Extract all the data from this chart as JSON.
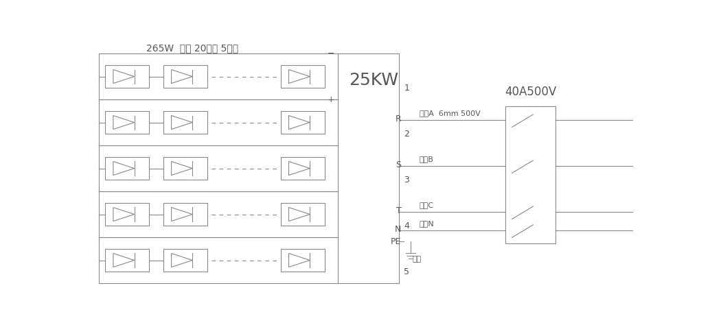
{
  "title": "265W  组件 20串联 5并联",
  "inverter_label": "25KW",
  "breaker_label": "40A500V",
  "num_strings": 5,
  "terminal_labels": [
    "R",
    "S",
    "T",
    "N",
    "PE"
  ],
  "wire_labels": [
    "相线A  6mm 500V",
    "相线B",
    "相线C",
    "零线N"
  ],
  "ground_label": "地线",
  "bg_color": "#ffffff",
  "line_color": "#888888",
  "text_color": "#555555",
  "font_size": 9,
  "title_font_size": 10,
  "inv_font_size": 18,
  "brk_font_size": 12
}
